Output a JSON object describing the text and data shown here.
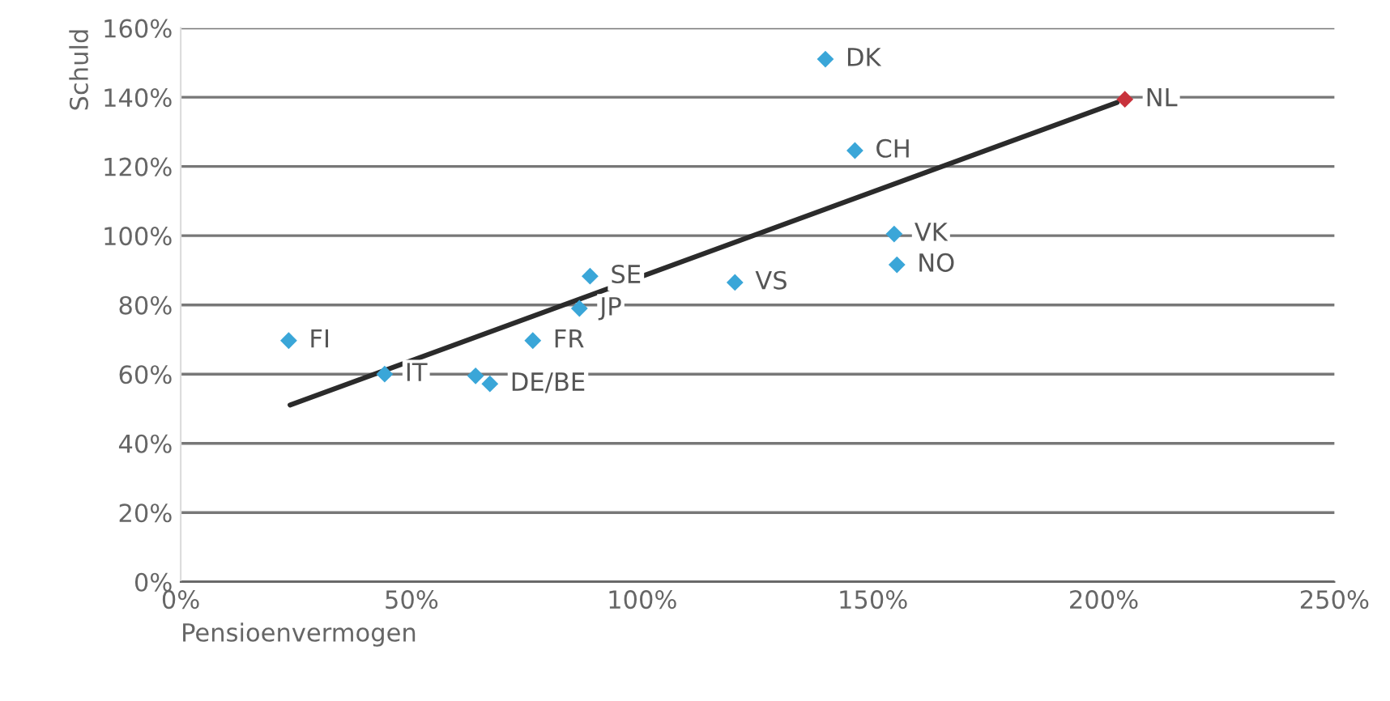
{
  "chart_data": {
    "type": "scatter",
    "xlabel": "Pensioenvermogen",
    "ylabel": "Schuld",
    "xlim": [
      0,
      250
    ],
    "xticks": [
      {
        "value": 0,
        "label": "0%"
      },
      {
        "value": 50,
        "label": "50%"
      },
      {
        "value": 100,
        "label": "100%"
      },
      {
        "value": 150,
        "label": "150%"
      },
      {
        "value": 200,
        "label": "200%"
      },
      {
        "value": 250,
        "label": "250%"
      }
    ],
    "ylim": [
      0,
      160
    ],
    "yticks": [
      {
        "value": 0,
        "label": "0%"
      },
      {
        "value": 20,
        "label": "20%"
      },
      {
        "value": 40,
        "label": "40%"
      },
      {
        "value": 60,
        "label": "60%"
      },
      {
        "value": 80,
        "label": "80%"
      },
      {
        "value": 100,
        "label": "100%"
      },
      {
        "value": 120,
        "label": "120%"
      },
      {
        "value": 140,
        "label": "140%"
      },
      {
        "value": 160,
        "label": "160%"
      }
    ],
    "grid": "y",
    "series": [
      {
        "marker": "diamond",
        "x": [
          23.4,
          44.2,
          63.9,
          67,
          76.3,
          86.4,
          88.7,
          120.1,
          139.7,
          146.1,
          154.6,
          155.2,
          204.6
        ],
        "values": [
          69.7,
          60,
          59.5,
          57.2,
          69.7,
          79,
          88.3,
          86.5,
          151,
          124.6,
          100.5,
          91.6,
          139.4
        ],
        "colors": [
          "#3aa6d8",
          "#3aa6d8",
          "#3aa6d8",
          "#3aa6d8",
          "#3aa6d8",
          "#3aa6d8",
          "#3aa6d8",
          "#3aa6d8",
          "#3aa6d8",
          "#3aa6d8",
          "#3aa6d8",
          "#3aa6d8",
          "#c8323c"
        ]
      },
      {
        "type": "line",
        "color": "#2b2b2b",
        "x": [
          23.7,
          202.9
        ],
        "values": [
          51.1,
          138.5
        ]
      }
    ],
    "annotations": [
      {
        "text": "FI",
        "x": 23.4,
        "y": 69.7
      },
      {
        "text": "IT",
        "x": 44.2,
        "y": 60
      },
      {
        "text": "DE/BE",
        "x": 67,
        "y": 57.2
      },
      {
        "text": "FR",
        "x": 76.3,
        "y": 69.7
      },
      {
        "text": "JP",
        "x": 86.4,
        "y": 79
      },
      {
        "text": "SE",
        "x": 88.7,
        "y": 88.3
      },
      {
        "text": "VS",
        "x": 120.1,
        "y": 86.5
      },
      {
        "text": "DK",
        "x": 139.7,
        "y": 151
      },
      {
        "text": "CH",
        "x": 146.1,
        "y": 124.6
      },
      {
        "text": "VK",
        "x": 154.6,
        "y": 100.5
      },
      {
        "text": "NO",
        "x": 155.2,
        "y": 91.6
      },
      {
        "text": "NL",
        "x": 204.6,
        "y": 139.4
      }
    ]
  }
}
